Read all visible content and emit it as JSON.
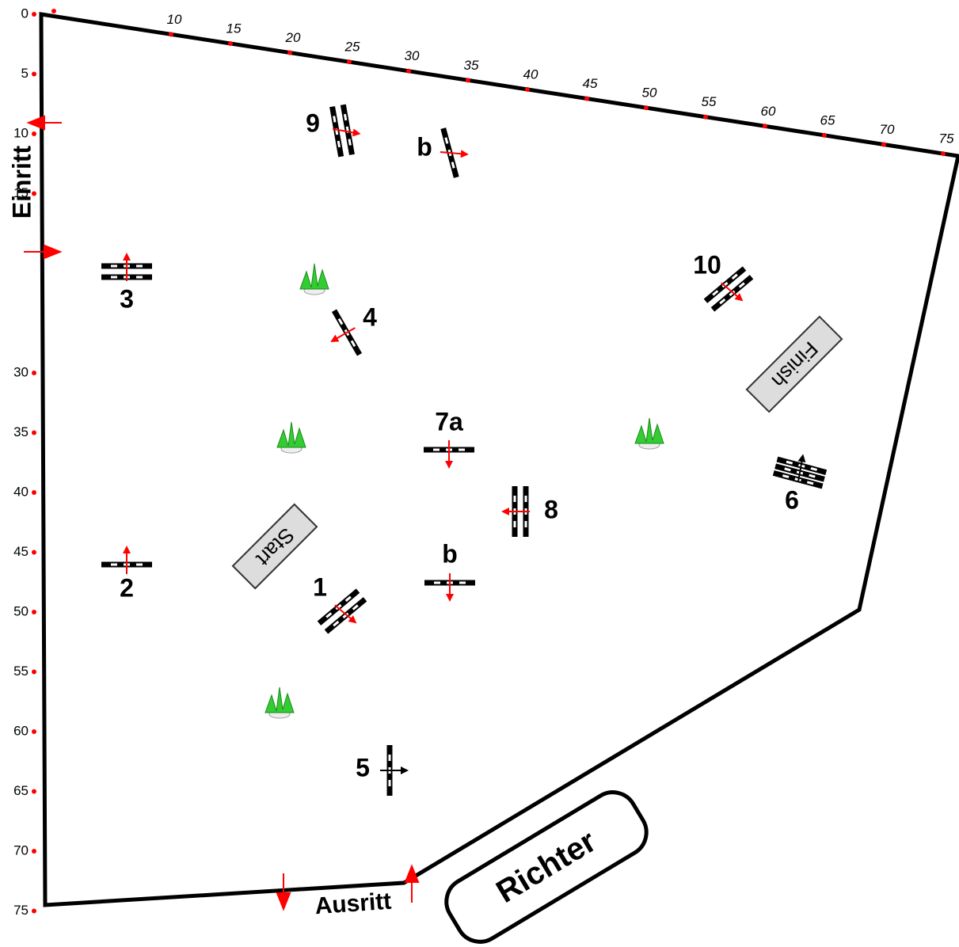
{
  "top_ruler": [
    10,
    15,
    20,
    25,
    30,
    35,
    40,
    45,
    50,
    55,
    60,
    65,
    70,
    75
  ],
  "left_ruler": [
    0,
    5,
    10,
    15,
    30,
    35,
    40,
    45,
    50,
    55,
    60,
    65,
    70,
    75
  ],
  "obstacles": [
    {
      "label": "9"
    },
    {
      "label": "b"
    },
    {
      "label": "10"
    },
    {
      "label": "3"
    },
    {
      "label": "4"
    },
    {
      "label": "7a"
    },
    {
      "label": "8"
    },
    {
      "label": "6"
    },
    {
      "label": "2"
    },
    {
      "label": "b"
    },
    {
      "label": "1"
    },
    {
      "label": "5"
    }
  ],
  "markers": {
    "entry": "Einritt",
    "exit": "Ausritt",
    "judge": "Richter",
    "start": "Start",
    "finish": "Finish"
  }
}
